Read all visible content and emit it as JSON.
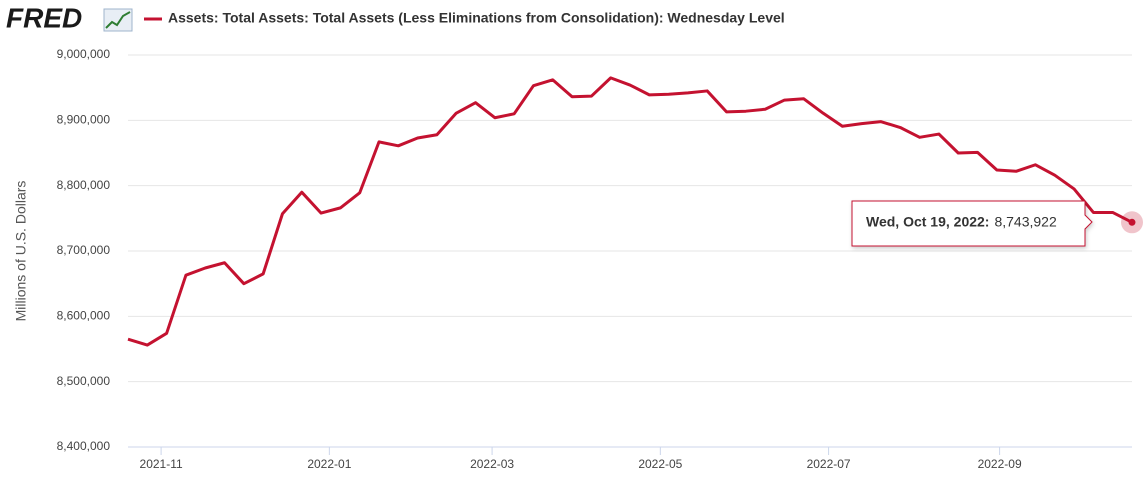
{
  "header": {
    "logo": "FRED"
  },
  "chart_data": {
    "type": "line",
    "y_label": "Millions of U.S. Dollars",
    "x": [
      "2021-10-20",
      "2021-10-27",
      "2021-11-03",
      "2021-11-10",
      "2021-11-17",
      "2021-11-24",
      "2021-12-01",
      "2021-12-08",
      "2021-12-15",
      "2021-12-22",
      "2021-12-29",
      "2022-01-05",
      "2022-01-12",
      "2022-01-19",
      "2022-01-26",
      "2022-02-02",
      "2022-02-09",
      "2022-02-16",
      "2022-02-23",
      "2022-03-02",
      "2022-03-09",
      "2022-03-16",
      "2022-03-23",
      "2022-03-30",
      "2022-04-06",
      "2022-04-13",
      "2022-04-20",
      "2022-04-27",
      "2022-05-04",
      "2022-05-11",
      "2022-05-18",
      "2022-05-25",
      "2022-06-01",
      "2022-06-08",
      "2022-06-15",
      "2022-06-22",
      "2022-06-29",
      "2022-07-06",
      "2022-07-13",
      "2022-07-20",
      "2022-07-27",
      "2022-08-03",
      "2022-08-10",
      "2022-08-17",
      "2022-08-24",
      "2022-08-31",
      "2022-09-07",
      "2022-09-14",
      "2022-09-21",
      "2022-09-28",
      "2022-10-05",
      "2022-10-12",
      "2022-10-19"
    ],
    "series": [
      {
        "name": "Assets: Total Assets: Total Assets (Less Eliminations from Consolidation): Wednesday Level",
        "color": "#c41230",
        "values": [
          8565000,
          8556000,
          8574000,
          8663000,
          8674000,
          8682000,
          8650000,
          8665000,
          8757000,
          8790000,
          8758000,
          8766000,
          8789000,
          8867000,
          8861000,
          8873000,
          8878000,
          8911000,
          8927000,
          8904000,
          8910000,
          8953000,
          8962000,
          8936000,
          8937000,
          8965000,
          8954000,
          8939000,
          8940000,
          8942000,
          8945000,
          8913000,
          8914000,
          8917000,
          8931000,
          8933000,
          8911000,
          8891000,
          8895000,
          8898000,
          8889000,
          8874000,
          8879000,
          8850000,
          8851000,
          8824000,
          8822000,
          8832000,
          8816000,
          8795000,
          8759000,
          8759000,
          8743922
        ]
      }
    ],
    "xlim": [
      "2021-10-20",
      "2022-10-19"
    ],
    "xticks": [
      "2021-11",
      "2022-01",
      "2022-03",
      "2022-05",
      "2022-07",
      "2022-09"
    ],
    "ylim": [
      8400000,
      9000000
    ],
    "yticks": [
      {
        "value": 8400000,
        "label": "8,400,000"
      },
      {
        "value": 8500000,
        "label": "8,500,000"
      },
      {
        "value": 8600000,
        "label": "8,600,000"
      },
      {
        "value": 8700000,
        "label": "8,700,000"
      },
      {
        "value": 8800000,
        "label": "8,800,000"
      },
      {
        "value": 8900000,
        "label": "8,900,000"
      },
      {
        "value": 9000000,
        "label": "9,000,000"
      }
    ],
    "grid": true,
    "tooltip": {
      "label": "Wed, Oct 19, 2022:",
      "value": 8743922,
      "value_label": "8,743,922"
    }
  }
}
